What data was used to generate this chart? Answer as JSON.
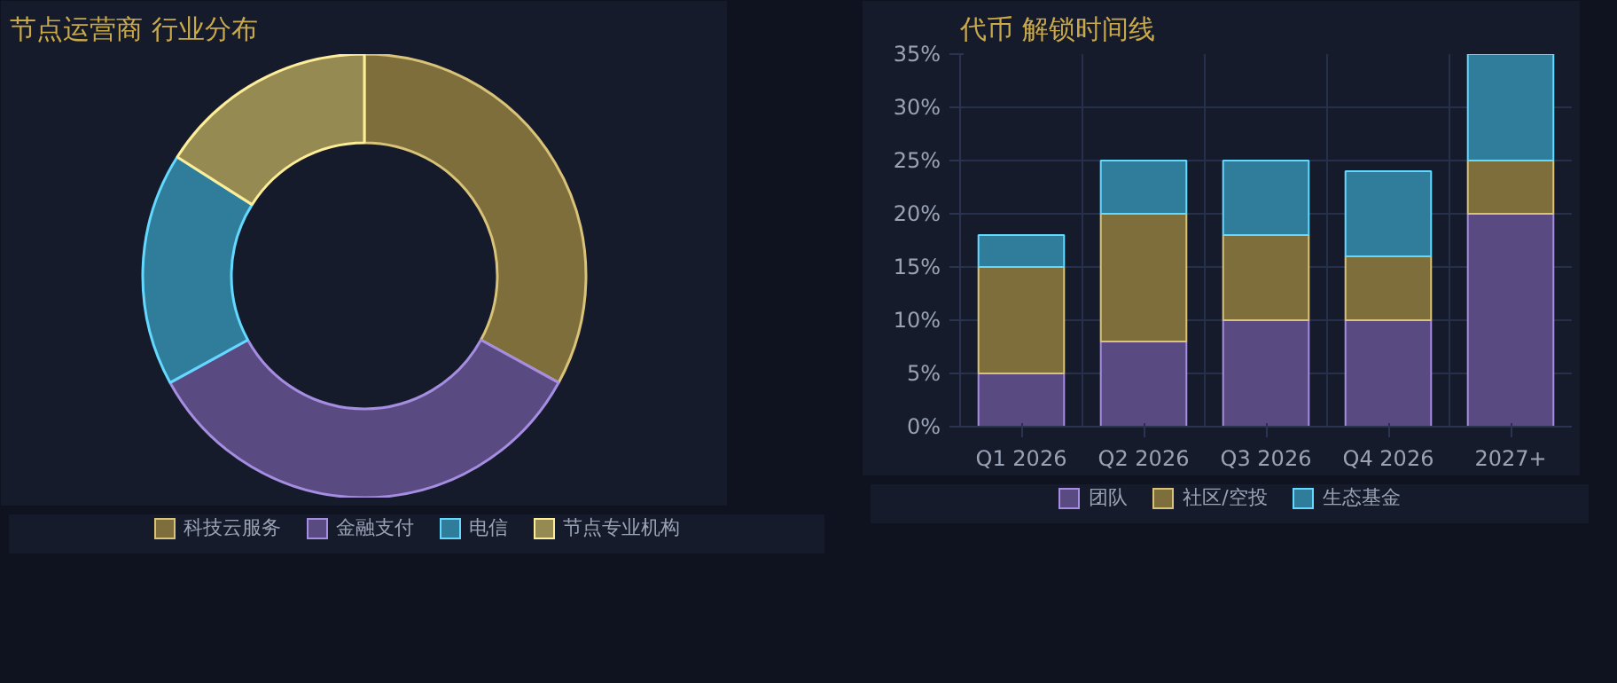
{
  "chart_data": [
    {
      "type": "donut",
      "title": "节点运营商 行业分布",
      "categories": [
        "科技云服务",
        "金融支付",
        "电信",
        "节点专业机构"
      ],
      "values": [
        33,
        34,
        17,
        16
      ],
      "colors": [
        "#7d6e3c",
        "#5a4a82",
        "#2f7d9a",
        "#958a52"
      ],
      "legend": "bottom"
    },
    {
      "type": "bar",
      "title": "代币 解锁时间线",
      "stacked": true,
      "categories": [
        "Q1 2026",
        "Q2 2026",
        "Q3 2026",
        "Q4 2026",
        "2027+"
      ],
      "series": [
        {
          "name": "团队",
          "color": "#5a4a82",
          "values": [
            5,
            8,
            10,
            10,
            20
          ]
        },
        {
          "name": "社区/空投",
          "color": "#7d6e3c",
          "values": [
            10,
            12,
            8,
            6,
            5
          ]
        },
        {
          "name": "生态基金",
          "color": "#2f7d9a",
          "values": [
            3,
            5,
            7,
            8,
            10
          ]
        }
      ],
      "ylim": [
        0,
        35
      ],
      "yticks": [
        {
          "value": 0,
          "label": "0%"
        },
        {
          "value": 5,
          "label": "5%"
        },
        {
          "value": 10,
          "label": "10%"
        },
        {
          "value": 15,
          "label": "15%"
        },
        {
          "value": 20,
          "label": "20%"
        },
        {
          "value": 25,
          "label": "25%"
        },
        {
          "value": 30,
          "label": "30%"
        },
        {
          "value": 35,
          "label": "35%"
        }
      ],
      "grid": true,
      "legend": "bottom"
    }
  ]
}
